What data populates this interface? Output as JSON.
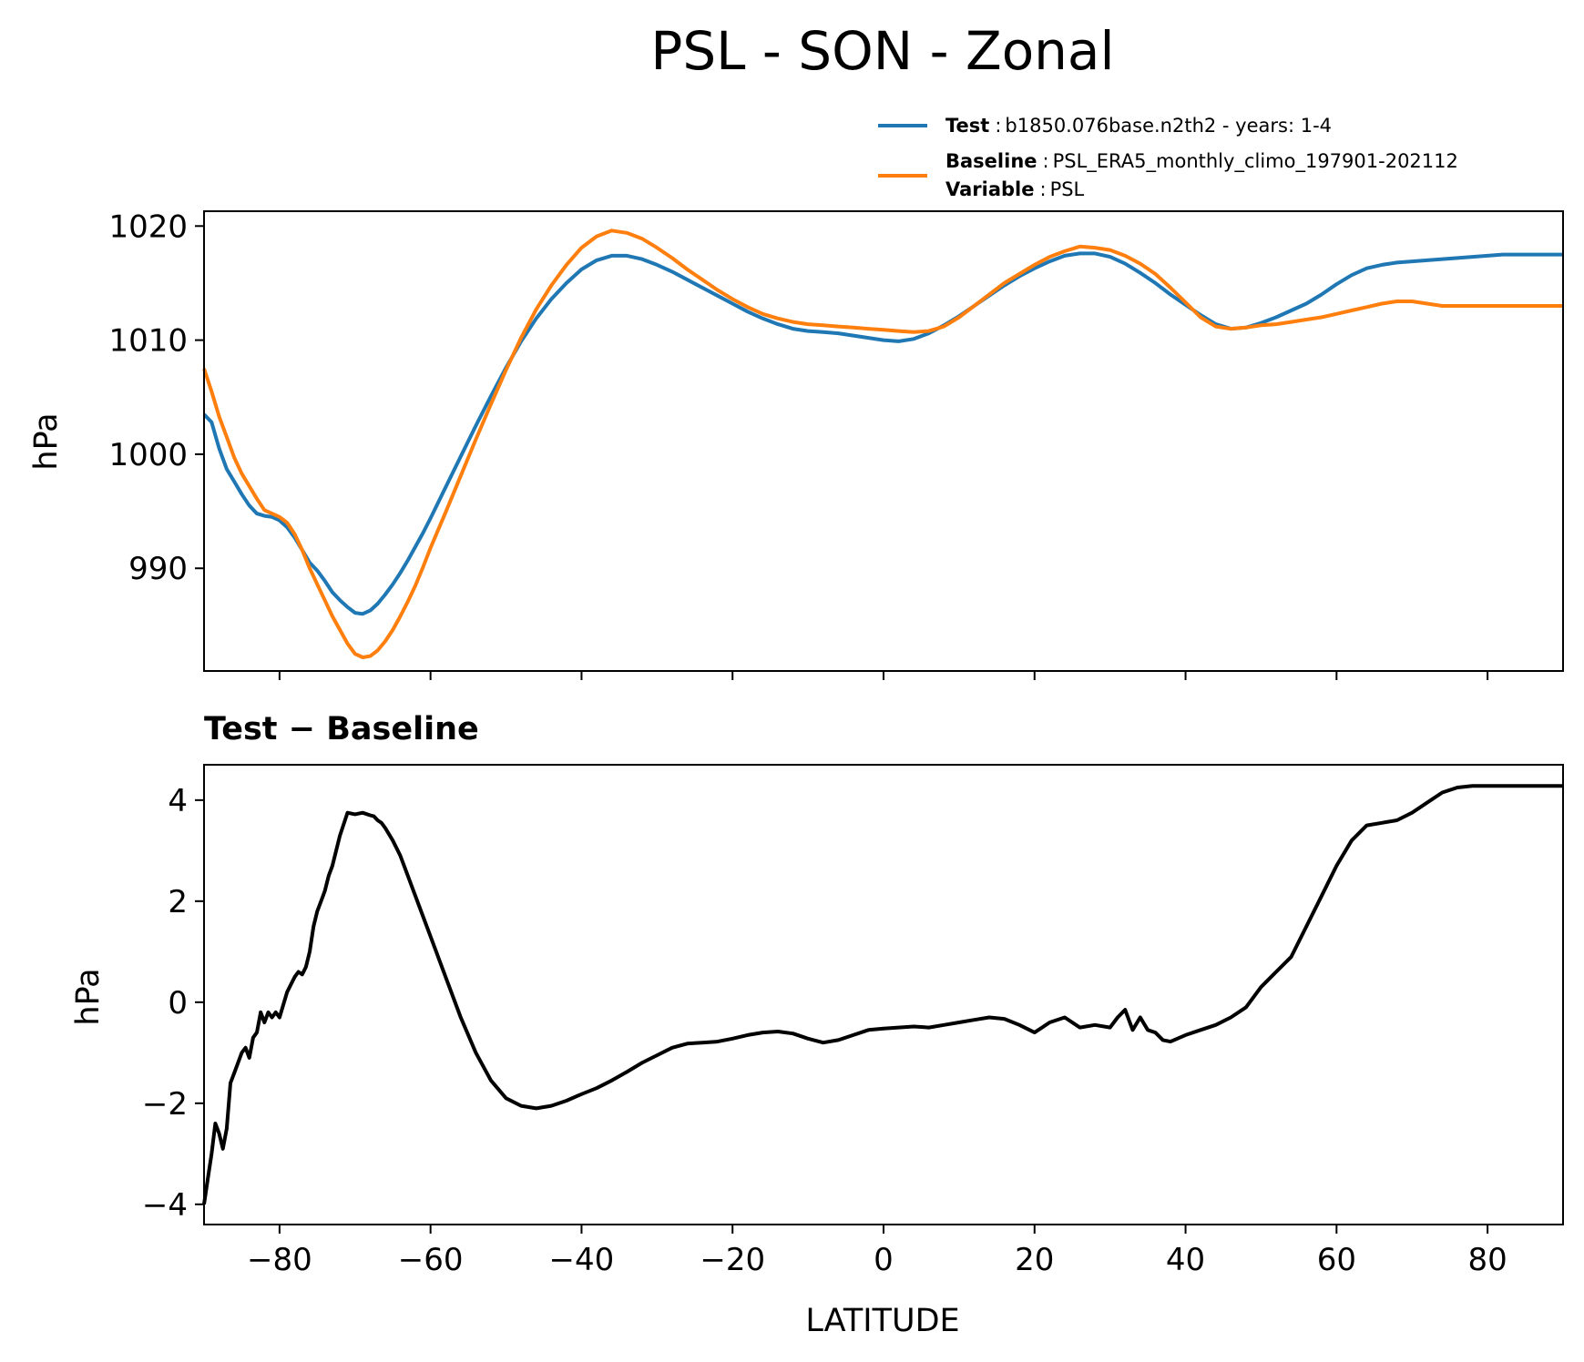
{
  "chart_data": [
    {
      "type": "line",
      "title": "PSL - SON - Zonal",
      "xlabel": "",
      "ylabel": "hPa",
      "xlim": [
        -90,
        90
      ],
      "ylim": [
        981,
        1021.3
      ],
      "xticks": [
        -80,
        -60,
        -40,
        -20,
        0,
        20,
        40,
        60,
        80
      ],
      "yticks": [
        990,
        1000,
        1010,
        1020
      ],
      "ytick_labels": [
        "990",
        "1000",
        "1010",
        "1020"
      ],
      "legend": {
        "placement": "top-right",
        "entries": [
          {
            "series": "Test",
            "label": "Test",
            "sep": ":",
            "text": "b1850.076base.n2th2 - years: 1-4"
          },
          {
            "series": "Baseline",
            "label": "Baseline",
            "sep": ":",
            "text": "PSL_ERA5_monthly_climo_197901-202112",
            "label2": "Variable",
            "sep2": ":",
            "text2": "PSL"
          }
        ]
      },
      "series": [
        {
          "name": "Test",
          "color": "#1f77b4",
          "x": [
            -90,
            -89,
            -88,
            -87,
            -86,
            -85,
            -84,
            -83,
            -82,
            -81,
            -80,
            -79,
            -78,
            -77,
            -76,
            -75,
            -74,
            -73,
            -72,
            -71,
            -70,
            -69,
            -68,
            -67,
            -66,
            -65,
            -64,
            -63,
            -62,
            -61,
            -60,
            -58,
            -56,
            -54,
            -52,
            -50,
            -48,
            -46,
            -44,
            -42,
            -40,
            -38,
            -36,
            -34,
            -32,
            -30,
            -28,
            -26,
            -24,
            -22,
            -20,
            -18,
            -16,
            -14,
            -12,
            -10,
            -8,
            -6,
            -4,
            -2,
            0,
            2,
            4,
            6,
            8,
            10,
            12,
            14,
            16,
            18,
            20,
            22,
            24,
            26,
            28,
            30,
            32,
            34,
            36,
            38,
            40,
            42,
            44,
            46,
            48,
            50,
            52,
            54,
            56,
            58,
            60,
            62,
            64,
            66,
            68,
            70,
            72,
            74,
            76,
            78,
            80,
            82,
            84,
            86,
            88,
            90
          ],
          "y": [
            1003.5,
            1002.8,
            1000.5,
            998.7,
            997.6,
            996.5,
            995.5,
            994.8,
            994.6,
            994.5,
            994.2,
            993.6,
            992.7,
            991.6,
            990.5,
            989.8,
            988.9,
            987.9,
            987.2,
            986.6,
            986.1,
            986.0,
            986.3,
            986.9,
            987.7,
            988.6,
            989.6,
            990.7,
            991.9,
            993.1,
            994.4,
            997.1,
            999.8,
            1002.5,
            1005.1,
            1007.6,
            1009.9,
            1011.9,
            1013.6,
            1015.0,
            1016.2,
            1017.0,
            1017.4,
            1017.4,
            1017.1,
            1016.6,
            1016.0,
            1015.3,
            1014.6,
            1013.9,
            1013.2,
            1012.5,
            1011.9,
            1011.4,
            1011.0,
            1010.8,
            1010.7,
            1010.6,
            1010.4,
            1010.2,
            1010.0,
            1009.9,
            1010.1,
            1010.6,
            1011.3,
            1012.1,
            1013.0,
            1013.9,
            1014.8,
            1015.6,
            1016.3,
            1016.9,
            1017.4,
            1017.6,
            1017.6,
            1017.3,
            1016.7,
            1015.9,
            1015.0,
            1014.0,
            1013.1,
            1012.2,
            1011.4,
            1011.0,
            1011.1,
            1011.5,
            1012.0,
            1012.6,
            1013.2,
            1014.0,
            1014.9,
            1015.7,
            1016.3,
            1016.6,
            1016.8,
            1016.9,
            1017.0,
            1017.1,
            1017.2,
            1017.3,
            1017.4,
            1017.5,
            1017.5,
            1017.5,
            1017.5,
            1017.5
          ]
        },
        {
          "name": "Baseline",
          "color": "#ff7f0e",
          "x": [
            -90,
            -89,
            -88,
            -87,
            -86,
            -85,
            -84,
            -83,
            -82,
            -81,
            -80,
            -79,
            -78,
            -77,
            -76,
            -75,
            -74,
            -73,
            -72,
            -71,
            -70,
            -69,
            -68,
            -67,
            -66,
            -65,
            -64,
            -63,
            -62,
            -61,
            -60,
            -58,
            -56,
            -54,
            -52,
            -50,
            -48,
            -46,
            -44,
            -42,
            -40,
            -38,
            -36,
            -34,
            -32,
            -30,
            -28,
            -26,
            -24,
            -22,
            -20,
            -18,
            -16,
            -14,
            -12,
            -10,
            -8,
            -6,
            -4,
            -2,
            0,
            2,
            4,
            6,
            8,
            10,
            12,
            14,
            16,
            18,
            20,
            22,
            24,
            26,
            28,
            30,
            32,
            34,
            36,
            38,
            40,
            42,
            44,
            46,
            48,
            50,
            52,
            54,
            56,
            58,
            60,
            62,
            64,
            66,
            68,
            70,
            72,
            74,
            76,
            78,
            80,
            82,
            84,
            86,
            88,
            90
          ],
          "y": [
            1007.5,
            1005.5,
            1003.3,
            1001.5,
            999.7,
            998.3,
            997.2,
            996.1,
            995.1,
            994.8,
            994.5,
            994.0,
            993.0,
            991.6,
            990.0,
            988.6,
            987.2,
            985.8,
            984.6,
            983.4,
            982.5,
            982.2,
            982.3,
            982.8,
            983.6,
            984.6,
            985.8,
            987.1,
            988.5,
            990.1,
            991.8,
            994.9,
            998.1,
            1001.3,
            1004.4,
            1007.4,
            1010.2,
            1012.7,
            1014.8,
            1016.6,
            1018.1,
            1019.1,
            1019.6,
            1019.4,
            1018.9,
            1018.1,
            1017.2,
            1016.2,
            1015.3,
            1014.4,
            1013.6,
            1012.9,
            1012.3,
            1011.9,
            1011.6,
            1011.4,
            1011.3,
            1011.2,
            1011.1,
            1011.0,
            1010.9,
            1010.8,
            1010.7,
            1010.8,
            1011.2,
            1012.0,
            1013.0,
            1014.0,
            1015.0,
            1015.8,
            1016.6,
            1017.3,
            1017.8,
            1018.2,
            1018.1,
            1017.9,
            1017.4,
            1016.7,
            1015.8,
            1014.6,
            1013.3,
            1012.0,
            1011.2,
            1011.0,
            1011.1,
            1011.3,
            1011.4,
            1011.6,
            1011.8,
            1012.0,
            1012.3,
            1012.6,
            1012.9,
            1013.2,
            1013.4,
            1013.4,
            1013.2,
            1013.0,
            1013.0,
            1013.0,
            1013.0,
            1013.0,
            1013.0,
            1013.0,
            1013.0,
            1013.0
          ]
        }
      ]
    },
    {
      "type": "line",
      "title": "Test − Baseline",
      "xlabel": "LATITUDE",
      "ylabel": "hPa",
      "xlim": [
        -90,
        90
      ],
      "ylim": [
        -4.4,
        4.7
      ],
      "xticks": [
        -80,
        -60,
        -40,
        -20,
        0,
        20,
        40,
        60,
        80
      ],
      "xtick_labels": [
        "−80",
        "−60",
        "−40",
        "−20",
        "0",
        "20",
        "40",
        "60",
        "80"
      ],
      "yticks": [
        -4,
        -2,
        0,
        2,
        4
      ],
      "ytick_labels": [
        "−4",
        "−2",
        "0",
        "2",
        "4"
      ],
      "series": [
        {
          "name": "Test − Baseline",
          "color": "#000000",
          "x": [
            -90,
            -89.5,
            -89,
            -88.5,
            -88,
            -87.5,
            -87,
            -86.5,
            -86,
            -85.5,
            -85,
            -84.5,
            -84,
            -83.5,
            -83,
            -82.5,
            -82,
            -81.5,
            -81,
            -80.5,
            -80,
            -79,
            -78,
            -77.5,
            -77,
            -76.5,
            -76,
            -75.5,
            -75,
            -74.5,
            -74,
            -73.5,
            -73,
            -72,
            -71,
            -70,
            -69,
            -68,
            -67.5,
            -67,
            -66.5,
            -66,
            -65,
            -64,
            -63,
            -62,
            -61,
            -60,
            -58,
            -56,
            -54,
            -52,
            -50,
            -48,
            -46,
            -44,
            -42,
            -40,
            -38,
            -36,
            -34,
            -32,
            -30,
            -28,
            -26,
            -24,
            -22,
            -20,
            -18,
            -16,
            -14,
            -12,
            -10,
            -8,
            -6,
            -4,
            -2,
            0,
            2,
            4,
            6,
            8,
            10,
            12,
            14,
            16,
            18,
            20,
            22,
            24,
            26,
            28,
            30,
            31,
            32,
            33,
            34,
            35,
            36,
            37,
            38,
            40,
            42,
            44,
            46,
            48,
            50,
            52,
            54,
            56,
            58,
            60,
            62,
            64,
            66,
            68,
            70,
            72,
            74,
            76,
            78,
            80,
            81,
            82,
            83,
            84,
            85,
            86,
            87,
            88,
            89,
            90
          ],
          "y": [
            -4.0,
            -3.5,
            -3.0,
            -2.4,
            -2.6,
            -2.9,
            -2.5,
            -1.6,
            -1.4,
            -1.2,
            -1.0,
            -0.9,
            -1.1,
            -0.7,
            -0.6,
            -0.2,
            -0.4,
            -0.2,
            -0.3,
            -0.2,
            -0.3,
            0.2,
            0.5,
            0.6,
            0.55,
            0.7,
            1.0,
            1.5,
            1.8,
            2.0,
            2.2,
            2.5,
            2.7,
            3.3,
            3.75,
            3.72,
            3.75,
            3.7,
            3.68,
            3.6,
            3.55,
            3.45,
            3.2,
            2.9,
            2.5,
            2.1,
            1.7,
            1.3,
            0.5,
            -0.3,
            -1.0,
            -1.55,
            -1.9,
            -2.05,
            -2.1,
            -2.05,
            -1.95,
            -1.82,
            -1.7,
            -1.55,
            -1.38,
            -1.2,
            -1.05,
            -0.9,
            -0.82,
            -0.8,
            -0.78,
            -0.72,
            -0.65,
            -0.6,
            -0.58,
            -0.62,
            -0.72,
            -0.8,
            -0.75,
            -0.65,
            -0.55,
            -0.52,
            -0.5,
            -0.48,
            -0.5,
            -0.45,
            -0.4,
            -0.35,
            -0.3,
            -0.33,
            -0.45,
            -0.6,
            -0.4,
            -0.3,
            -0.5,
            -0.45,
            -0.5,
            -0.3,
            -0.15,
            -0.55,
            -0.3,
            -0.55,
            -0.6,
            -0.75,
            -0.78,
            -0.65,
            -0.55,
            -0.45,
            -0.3,
            -0.1,
            0.3,
            0.6,
            0.9,
            1.5,
            2.1,
            2.7,
            3.2,
            3.5,
            3.55,
            3.6,
            3.75,
            3.95,
            4.15,
            4.25,
            4.28,
            4.28,
            4.28,
            4.28,
            4.28,
            4.28,
            4.28,
            4.28,
            4.28,
            4.28,
            4.28,
            4.28
          ]
        }
      ]
    }
  ]
}
